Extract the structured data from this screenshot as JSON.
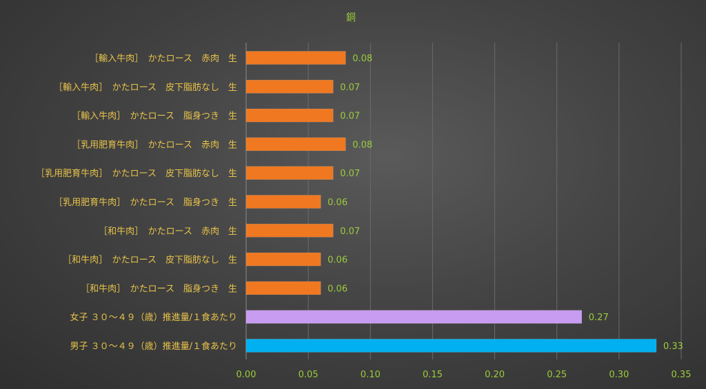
{
  "chart_data": {
    "type": "bar",
    "orientation": "horizontal",
    "title": "銅",
    "categories": [
      "［輸入牛肉］　かたロース　赤肉　生",
      "［輸入牛肉］　かたロース　皮下脂肪なし　生",
      "［輸入牛肉］　かたロース　脂身つき　生",
      "［乳用肥育牛肉］　かたロース　赤肉　生",
      "［乳用肥育牛肉］　かたロース　皮下脂肪なし　生",
      "［乳用肥育牛肉］　かたロース　脂身つき　生",
      "［和牛肉］　かたロース　赤肉　生",
      "［和牛肉］　かたロース　皮下脂肪なし　生",
      "［和牛肉］　かたロース　脂身つき　生",
      "女子 ３０～４９（歳）推進量/１食あたり",
      "男子 ３０～４９（歳）推進量/１食あたり"
    ],
    "values": [
      0.08,
      0.07,
      0.07,
      0.08,
      0.07,
      0.06,
      0.07,
      0.06,
      0.06,
      0.27,
      0.33
    ],
    "value_labels": [
      "0.08",
      "0.07",
      "0.07",
      "0.08",
      "0.07",
      "0.06",
      "0.07",
      "0.06",
      "0.06",
      "0.27",
      "0.33"
    ],
    "bar_colors": [
      "#f07820",
      "#f07820",
      "#f07820",
      "#f07820",
      "#f07820",
      "#f07820",
      "#f07820",
      "#f07820",
      "#f07820",
      "#c89cf0",
      "#00b0f0"
    ],
    "xlim": [
      0,
      0.35
    ],
    "xticks": [
      0,
      0.05,
      0.1,
      0.15,
      0.2,
      0.25,
      0.3,
      0.35
    ],
    "xtick_labels": [
      "0.00",
      "0.05",
      "0.10",
      "0.15",
      "0.20",
      "0.25",
      "0.30",
      "0.35"
    ],
    "grid": "vertical",
    "legend": "none",
    "colors": {
      "title": "#9ccc3c",
      "category_label": "#e8c34a",
      "tick_label": "#9ccc3c",
      "data_label": "#9ccc3c",
      "grid": "#6b6b6b"
    }
  }
}
